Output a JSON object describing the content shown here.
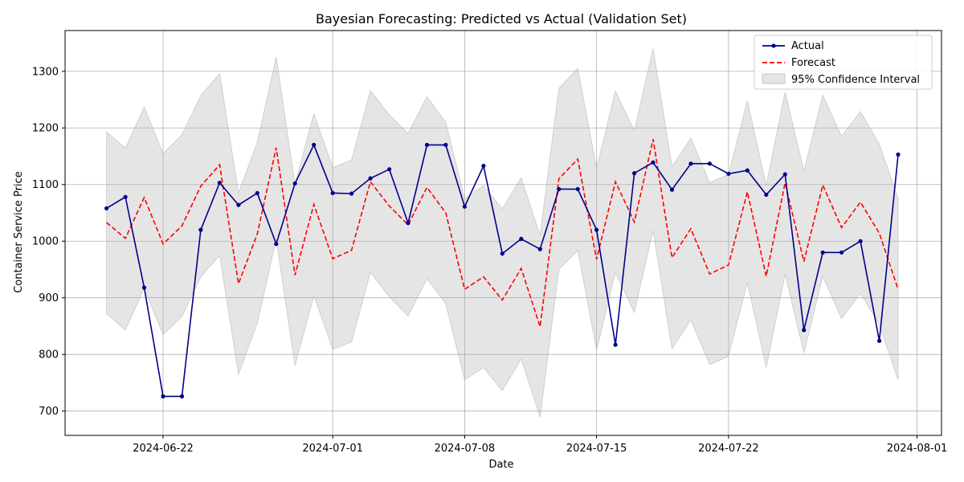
{
  "chart_data": {
    "type": "line",
    "title": "Bayesian Forecasting: Predicted vs Actual (Validation Set)",
    "xlabel": "Date",
    "ylabel": "Container Service Price",
    "x_start": "2024-06-19",
    "x_tick_labels": [
      "2024-06-22",
      "2024-07-01",
      "2024-07-08",
      "2024-07-15",
      "2024-07-22",
      "2024-08-01"
    ],
    "y_tick_labels": [
      "700",
      "800",
      "900",
      "1000",
      "1100",
      "1200",
      "1300"
    ],
    "ylim": [
      657,
      1372
    ],
    "xlim": [
      "2024-06-16",
      "2024-08-02"
    ],
    "grid": true,
    "legend_position": "top-right",
    "colors": {
      "actual": "#00008b",
      "forecast": "#ff0000",
      "ci": "#d3d3d3"
    },
    "series": [
      {
        "name": "Actual",
        "values": [
          1058,
          1078,
          918,
          726,
          726,
          1020,
          1103,
          1064,
          1085,
          995,
          1102,
          1170,
          1085,
          1084,
          1111,
          1127,
          1032,
          1170,
          1170,
          1061,
          1133,
          978,
          1004,
          986,
          1092,
          1092,
          1020,
          817,
          1120,
          1139,
          1091,
          1137,
          1137,
          1119,
          1125,
          1082,
          1118,
          843,
          980,
          980,
          1000,
          824,
          1153
        ]
      },
      {
        "name": "Forecast",
        "values": [
          1033,
          1005,
          1077,
          995,
          1027,
          1097,
          1135,
          925,
          1013,
          1165,
          940,
          1065,
          969,
          984,
          1105,
          1062,
          1029,
          1095,
          1050,
          915,
          937,
          896,
          952,
          849,
          1110,
          1145,
          968,
          1105,
          1034,
          1180,
          971,
          1022,
          942,
          958,
          1087,
          938,
          1103,
          964,
          1099,
          1024,
          1069,
          1014,
          915
        ]
      }
    ],
    "ci_name": "95% Confidence Interval",
    "ci_upper": [
      1193,
      1164,
      1237,
      1155,
      1188,
      1257,
      1296,
      1085,
      1175,
      1325,
      1100,
      1225,
      1130,
      1143,
      1266,
      1223,
      1190,
      1255,
      1210,
      1075,
      1098,
      1057,
      1112,
      1010,
      1270,
      1305,
      1129,
      1265,
      1195,
      1340,
      1131,
      1182,
      1103,
      1118,
      1248,
      1098,
      1263,
      1124,
      1258,
      1185,
      1229,
      1171,
      1075
    ],
    "ci_lower": [
      872,
      843,
      917,
      835,
      867,
      937,
      975,
      765,
      855,
      1004,
      780,
      904,
      809,
      822,
      945,
      902,
      868,
      934,
      890,
      755,
      777,
      736,
      792,
      689,
      950,
      984,
      808,
      945,
      874,
      1019,
      810,
      861,
      782,
      797,
      927,
      777,
      942,
      803,
      938,
      863,
      908,
      853,
      755
    ]
  }
}
